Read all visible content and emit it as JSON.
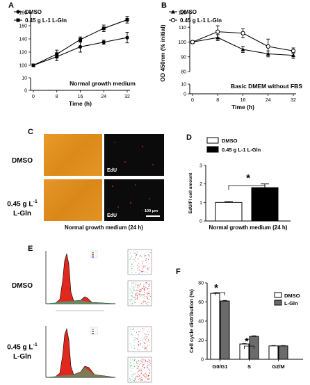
{
  "panels": {
    "A": {
      "letter": "A",
      "footnote": "Normal growth medium"
    },
    "B": {
      "letter": "B",
      "footnote": "Basic DMEM without FBS"
    },
    "C": {
      "letter": "C",
      "row1": "DMSO",
      "row2a": "0.45 g L",
      "row2sup": "-1",
      "row2b": "L-Gln",
      "edu1": "EdU",
      "edu2": "EdU",
      "scalebar": "100 μm",
      "caption": "Normal growth medium (24 h)"
    },
    "D": {
      "letter": "D",
      "star": "*"
    },
    "E": {
      "letter": "E",
      "row1": "DMSO",
      "row2a": "0.45 g L",
      "row2sup": "-1",
      "row2b": "L-Gln"
    },
    "F": {
      "letter": "F",
      "star": "*"
    }
  },
  "colors": {
    "black": "#000000",
    "gray": "#6b6b6b",
    "orange": "#e8921c",
    "red": "#e0281e"
  },
  "chart_data": [
    {
      "id": "A",
      "type": "line",
      "x": [
        0,
        8,
        16,
        24,
        32
      ],
      "xlabel": "Time (h)",
      "ylabel": "",
      "ylim": [
        0,
        180
      ],
      "axis_break": [
        10,
        100
      ],
      "yticks": [
        0,
        10,
        100,
        120,
        140,
        160,
        180
      ],
      "series": [
        {
          "name": "DMSO",
          "marker": "circle",
          "values": [
            100,
            113,
            128,
            135,
            142
          ],
          "err": [
            1,
            6,
            8,
            3,
            8
          ]
        },
        {
          "name": "0.45 g L-1 L-Gln",
          "marker": "square",
          "values": [
            100,
            117,
            139,
            156,
            169
          ],
          "err": [
            1,
            6,
            4,
            5,
            5
          ]
        }
      ]
    },
    {
      "id": "B",
      "type": "line",
      "x": [
        0,
        8,
        16,
        24,
        32
      ],
      "xlabel": "Time (h)",
      "ylabel": "OD 450nm (% initial)",
      "ylim": [
        0,
        120
      ],
      "axis_break": [
        10,
        80
      ],
      "yticks": [
        0,
        10,
        80,
        90,
        100,
        110,
        120
      ],
      "series": [
        {
          "name": "DMSO",
          "marker": "triangle",
          "values": [
            100,
            103,
            95,
            92,
            91
          ],
          "err": [
            1,
            2,
            2,
            2,
            2
          ]
        },
        {
          "name": "0.45 g L-1 L-Gln",
          "marker": "circle-open",
          "values": [
            100,
            107,
            106,
            97,
            94
          ],
          "err": [
            1,
            4,
            3,
            5,
            2
          ]
        }
      ]
    },
    {
      "id": "D",
      "type": "bar",
      "categories": [
        "DMSO",
        "0.45 g L-1 L-Gln"
      ],
      "values": [
        1.0,
        1.8
      ],
      "err": [
        0.05,
        0.2
      ],
      "xlabel": "Normal growth medium (24 h)",
      "ylabel": "EdU/Fl cell amount",
      "ylim": [
        0,
        3
      ],
      "yticks": [
        0,
        1,
        2,
        3
      ]
    },
    {
      "id": "F",
      "type": "bar",
      "categories": [
        "G0/G1",
        "S",
        "G2/M"
      ],
      "series": [
        {
          "name": "DMSO",
          "values": [
            69,
            16,
            14
          ],
          "err": [
            0.6,
            0.5,
            0.4
          ]
        },
        {
          "name": "L-Gln",
          "values": [
            61,
            24,
            14
          ],
          "err": [
            0.6,
            0.6,
            0.4
          ]
        }
      ],
      "ylabel": "Cell cycle distribution (%)",
      "ylim": [
        0,
        80
      ],
      "yticks": [
        0,
        20,
        40,
        60,
        80
      ]
    }
  ]
}
